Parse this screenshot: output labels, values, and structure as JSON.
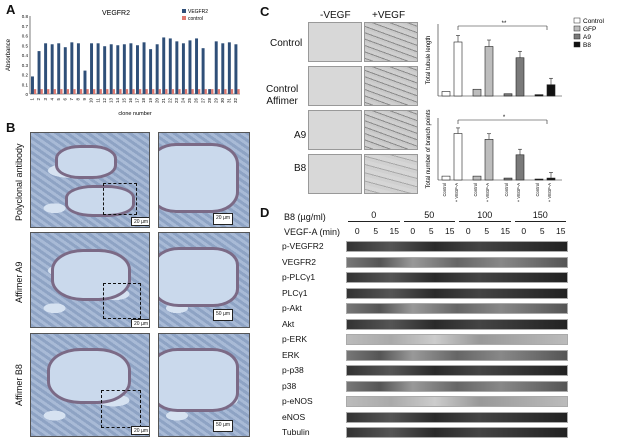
{
  "panels": {
    "A": "A",
    "B": "B",
    "C": "C",
    "D": "D"
  },
  "panelA": {
    "chart_data": {
      "type": "bar",
      "title": "VEGFR2",
      "ylabel": "Absorbance",
      "xlabel": "clone number",
      "ylim": [
        0,
        0.8
      ],
      "yticks": [
        "0.8",
        "0.7",
        "0.6",
        "0.5",
        "0.4",
        "0.3",
        "0.2",
        "0.1",
        "0"
      ],
      "categories": [
        "1",
        "2",
        "3",
        "4",
        "5",
        "6",
        "7",
        "8",
        "9",
        "10",
        "11",
        "12",
        "13",
        "14",
        "15",
        "16",
        "17",
        "18",
        "19",
        "20",
        "21",
        "22",
        "23",
        "24",
        "25",
        "26",
        "27",
        "28",
        "29",
        "30",
        "31",
        "32"
      ],
      "series": [
        {
          "name": "VEGFR2",
          "color": "#2f4f78",
          "values": [
            0.18,
            0.44,
            0.52,
            0.51,
            0.52,
            0.48,
            0.53,
            0.52,
            0.24,
            0.52,
            0.52,
            0.49,
            0.51,
            0.5,
            0.51,
            0.52,
            0.5,
            0.53,
            0.46,
            0.51,
            0.58,
            0.57,
            0.54,
            0.52,
            0.55,
            0.57,
            0.47,
            0.05,
            0.54,
            0.52,
            0.53,
            0.51
          ]
        },
        {
          "name": "control",
          "color": "#e07a70",
          "values": [
            0.05,
            0.05,
            0.05,
            0.05,
            0.05,
            0.05,
            0.05,
            0.05,
            0.05,
            0.05,
            0.05,
            0.05,
            0.05,
            0.05,
            0.05,
            0.05,
            0.05,
            0.05,
            0.05,
            0.05,
            0.05,
            0.05,
            0.05,
            0.05,
            0.05,
            0.05,
            0.05,
            0.05,
            0.05,
            0.05,
            0.05,
            0.05
          ]
        }
      ]
    }
  },
  "panelB": {
    "rows": [
      "Polyclonal antibody",
      "Affimer  A9",
      "Affimer  B8"
    ],
    "scalebars": [
      "20 µm",
      "50 µm",
      "50 µm"
    ],
    "mini_scalebar": "20 µm"
  },
  "panelC": {
    "col_headers": [
      "-VEGF",
      "+VEGF"
    ],
    "row_labels": [
      "Control",
      "Control\nAffimer",
      "A9",
      "B8"
    ],
    "legend": [
      "Control",
      "GFP",
      "A9",
      "B8"
    ],
    "legend_colors": [
      "#ffffff",
      "#bdbdbd",
      "#7a7a7a",
      "#111111"
    ],
    "chart_data": [
      {
        "type": "bar",
        "ylabel": "Total tubule length",
        "groups": [
          "Control",
          "GFP",
          "A9",
          "B8"
        ],
        "conditions": [
          "Control",
          "+ VEGF-A"
        ],
        "values": [
          [
            1,
            12
          ],
          [
            1.5,
            11
          ],
          [
            0.5,
            8.5
          ],
          [
            0.3,
            2.5
          ]
        ],
        "significance": "**"
      },
      {
        "type": "bar",
        "ylabel": "Total number of branch points",
        "groups": [
          "Control",
          "GFP",
          "A9",
          "B8"
        ],
        "conditions": [
          "Control",
          "+ VEGF-A"
        ],
        "values": [
          [
            2,
            24
          ],
          [
            2,
            21
          ],
          [
            1,
            13
          ],
          [
            0.5,
            1
          ]
        ],
        "xlabels": [
          "Control",
          "+ VEGF-A",
          "Control",
          "+ VEGF-A",
          "Control",
          "+ VEGF-A",
          "Control",
          "+ VEGF-A"
        ],
        "significance": "*"
      }
    ]
  },
  "panelD": {
    "dose_label": "B8 (µg/ml)",
    "doses": [
      "0",
      "50",
      "100",
      "150"
    ],
    "time_label": "VEGF-A (min)",
    "times": [
      "0",
      "5",
      "15",
      "0",
      "5",
      "15",
      "0",
      "5",
      "15",
      "0",
      "5",
      "15"
    ],
    "blots": [
      "p-VEGFR2",
      "VEGFR2",
      "p-PLCγ1",
      "PLCγ1",
      "p-Akt",
      "Akt",
      "p-ERK",
      "ERK",
      "p-p38",
      "p38",
      "p-eNOS",
      "eNOS",
      "Tubulin"
    ]
  }
}
